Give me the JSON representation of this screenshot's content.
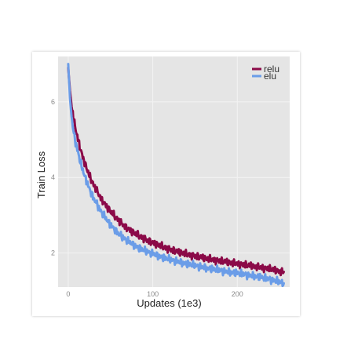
{
  "chart_data": {
    "type": "line",
    "xlabel": "Updates (1e3)",
    "ylabel": "Train Loss",
    "xlim": [
      -12,
      262
    ],
    "ylim": [
      1.1,
      7.2
    ],
    "x_ticks": [
      "0",
      "100",
      "200"
    ],
    "y_ticks": [
      "2",
      "4",
      "6"
    ],
    "grid": true,
    "legend_position": "top-right",
    "series": [
      {
        "name": "relu",
        "color": "#8b0a48",
        "x": [
          0,
          2,
          4,
          6,
          8,
          10,
          15,
          20,
          25,
          30,
          40,
          50,
          60,
          70,
          80,
          90,
          100,
          110,
          120,
          130,
          140,
          150,
          160,
          170,
          180,
          190,
          200,
          210,
          220,
          230,
          240,
          250,
          255
        ],
        "y": [
          6.9,
          6.3,
          5.9,
          5.6,
          5.35,
          5.15,
          4.7,
          4.35,
          4.05,
          3.8,
          3.4,
          3.1,
          2.85,
          2.65,
          2.5,
          2.38,
          2.27,
          2.18,
          2.1,
          2.03,
          1.97,
          1.92,
          1.87,
          1.83,
          1.79,
          1.75,
          1.72,
          1.68,
          1.65,
          1.61,
          1.57,
          1.52,
          1.5
        ]
      },
      {
        "name": "elu",
        "color": "#6b9de8",
        "x": [
          0,
          2,
          4,
          6,
          8,
          10,
          15,
          20,
          25,
          30,
          40,
          50,
          60,
          70,
          80,
          90,
          100,
          110,
          120,
          130,
          140,
          150,
          160,
          170,
          180,
          190,
          200,
          210,
          220,
          230,
          240,
          250,
          255
        ],
        "y": [
          7.0,
          6.1,
          5.6,
          5.25,
          5.0,
          4.8,
          4.35,
          4.0,
          3.7,
          3.45,
          3.05,
          2.75,
          2.5,
          2.32,
          2.18,
          2.07,
          1.98,
          1.9,
          1.83,
          1.77,
          1.72,
          1.67,
          1.62,
          1.58,
          1.54,
          1.5,
          1.47,
          1.43,
          1.39,
          1.35,
          1.3,
          1.24,
          1.2
        ]
      }
    ]
  }
}
